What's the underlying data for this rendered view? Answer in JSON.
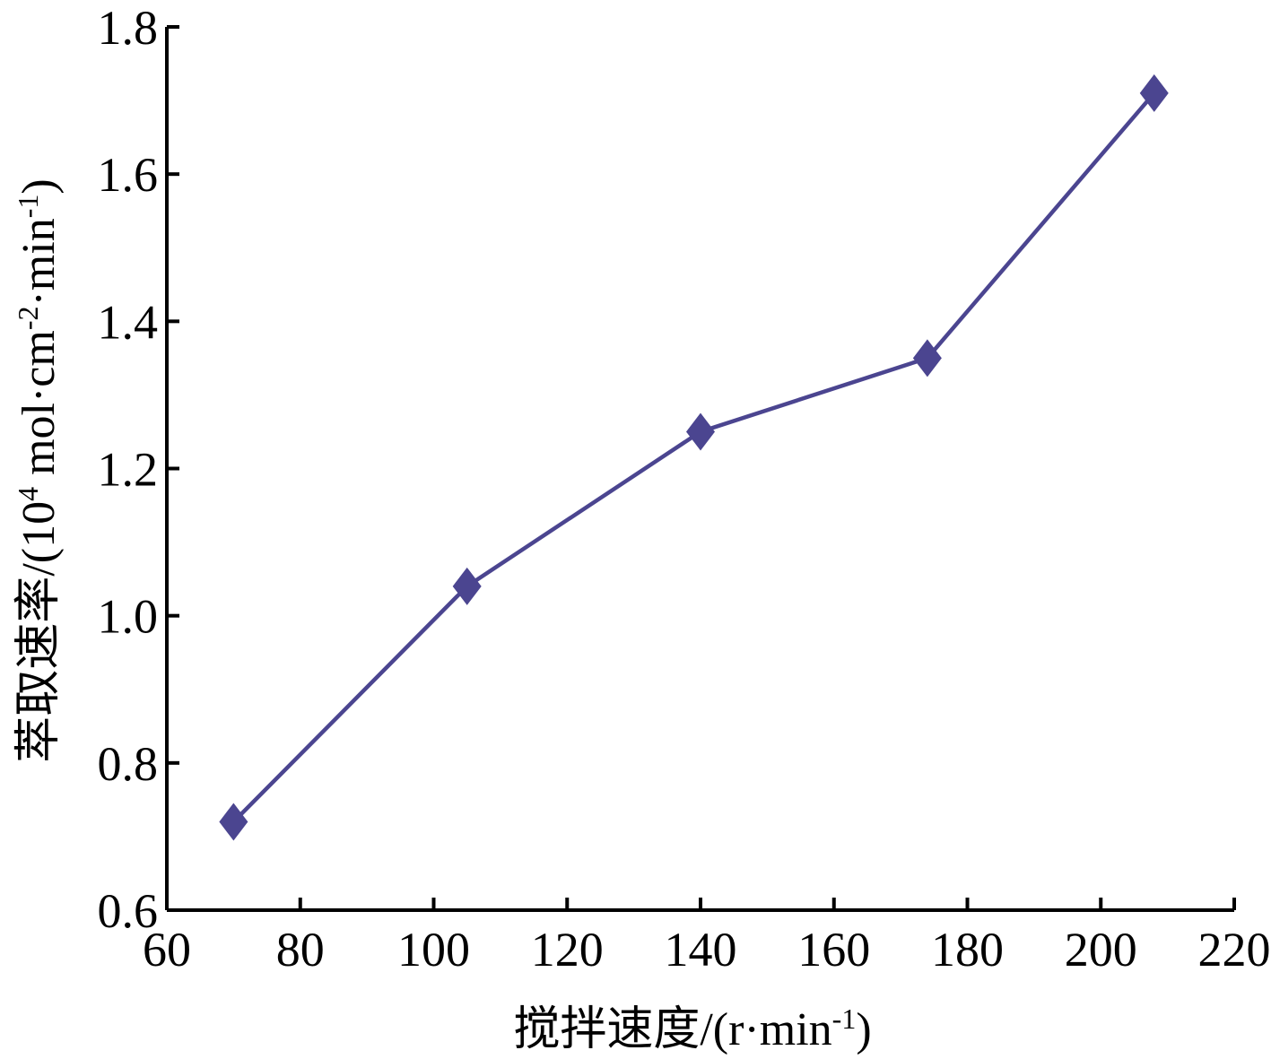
{
  "chart_data": {
    "type": "line",
    "xlabel": {
      "main": "搅拌速度/(r·min",
      "sup": "-1",
      "tail": ")"
    },
    "ylabel": {
      "main": "萃取速率/(10",
      "sup1": "4",
      "mid": " mol·cm",
      "sup2": "-2",
      "mid2": "·min",
      "sup3": "-1",
      "tail": ")"
    },
    "xlim": [
      60,
      220
    ],
    "ylim": [
      0.6,
      1.8
    ],
    "x_ticks": [
      60,
      80,
      100,
      120,
      140,
      160,
      180,
      200,
      220
    ],
    "y_ticks": [
      0.6,
      0.8,
      1.0,
      1.2,
      1.4,
      1.6,
      1.8
    ],
    "x_tick_labels": [
      "60",
      "80",
      "100",
      "120",
      "140",
      "160",
      "180",
      "200",
      "220"
    ],
    "y_tick_labels": [
      "0.6",
      "0.8",
      "1.0",
      "1.2",
      "1.4",
      "1.6",
      "1.8"
    ],
    "grid": false,
    "series": [
      {
        "color": "#4b4590",
        "marker": "diamond",
        "x": [
          70,
          105,
          140,
          174,
          208
        ],
        "y": [
          0.72,
          1.04,
          1.25,
          1.35,
          1.71
        ]
      }
    ]
  }
}
